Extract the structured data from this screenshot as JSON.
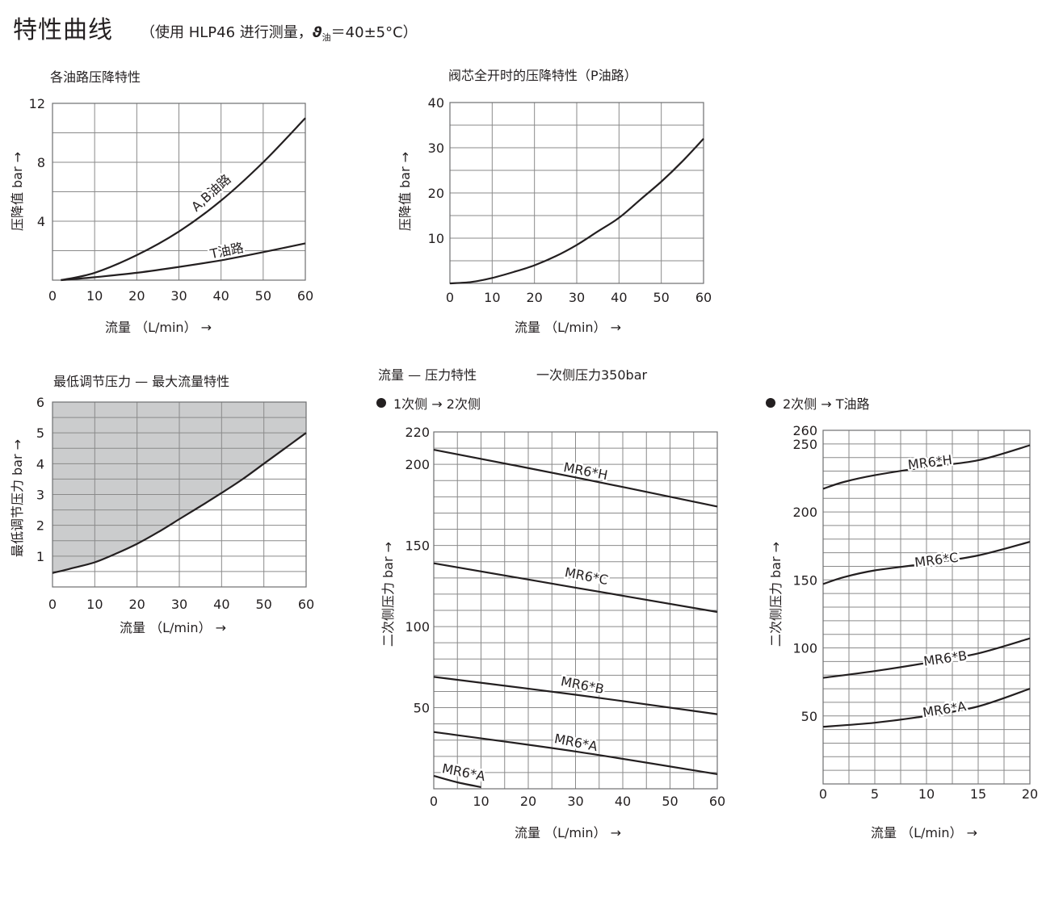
{
  "header": {
    "title": "特性曲线",
    "condition_prefix": "（使用 HLP46 进行测量，",
    "condition_symbol": "ϑ",
    "condition_sub": "油",
    "condition_suffix": "＝40±5°C）"
  },
  "chart_data": [
    {
      "id": "pressure-drop",
      "type": "line",
      "title": "各油路压降特性",
      "xlabel": "流量 （L/min） →",
      "ylabel": "压降值 bar →",
      "xlim": [
        0,
        60
      ],
      "ylim": [
        0,
        12
      ],
      "x_ticks": [
        "0",
        "10",
        "20",
        "30",
        "40",
        "50",
        "60"
      ],
      "y_ticks": [
        "4",
        "8",
        "12"
      ],
      "grid": true,
      "series": [
        {
          "name": "A,B油路",
          "x": [
            2,
            10,
            20,
            30,
            40,
            50,
            60
          ],
          "y": [
            0,
            0.5,
            1.7,
            3.3,
            5.4,
            8.0,
            11.0
          ]
        },
        {
          "name": "T油路",
          "x": [
            2,
            10,
            20,
            30,
            40,
            50,
            60
          ],
          "y": [
            0,
            0.2,
            0.5,
            0.9,
            1.35,
            1.9,
            2.5
          ]
        }
      ]
    },
    {
      "id": "pressure-drop-p",
      "type": "line",
      "title": "阀芯全开时的压降特性（P油路）",
      "xlabel": "流量 （L/min） →",
      "ylabel": "压降值 bar →",
      "xlim": [
        0,
        60
      ],
      "ylim": [
        0,
        40
      ],
      "x_ticks": [
        "0",
        "10",
        "20",
        "30",
        "40",
        "50",
        "60"
      ],
      "y_ticks": [
        "10",
        "20",
        "30",
        "40"
      ],
      "grid": true,
      "series": [
        {
          "name": "",
          "x": [
            0,
            5,
            10,
            15,
            20,
            25,
            30,
            35,
            40,
            45,
            50,
            55,
            60
          ],
          "y": [
            0,
            0.3,
            1.2,
            2.5,
            4,
            6,
            8.5,
            11.5,
            14.5,
            18.5,
            22.5,
            27,
            32
          ]
        }
      ]
    },
    {
      "id": "min-pressure",
      "type": "area",
      "title": "最低调节压力 — 最大流量特性",
      "xlabel": "流量 （L/min） →",
      "ylabel": "最低调节压力 bar →",
      "xlim": [
        0,
        60
      ],
      "ylim": [
        0,
        6
      ],
      "x_ticks": [
        "0",
        "10",
        "20",
        "30",
        "40",
        "50",
        "60"
      ],
      "y_ticks": [
        "1",
        "2",
        "3",
        "4",
        "5",
        "6"
      ],
      "grid": true,
      "shade": "above",
      "series": [
        {
          "name": "",
          "x": [
            0,
            5,
            10,
            15,
            20,
            25,
            30,
            35,
            40,
            45,
            50,
            55,
            60
          ],
          "y": [
            0.45,
            0.62,
            0.8,
            1.08,
            1.4,
            1.78,
            2.2,
            2.62,
            3.05,
            3.5,
            4.0,
            4.5,
            5.0
          ]
        }
      ]
    },
    {
      "id": "flow-pressure-1to2",
      "type": "line",
      "title": "流量 — 压力特性",
      "note": "一次侧压力350bar",
      "subtitle": "1次侧 → 2次侧",
      "xlabel": "流量 （L/min） →",
      "ylabel": "二次侧压力 bar →",
      "xlim": [
        0,
        60
      ],
      "ylim": [
        0,
        220
      ],
      "x_ticks": [
        "0",
        "10",
        "20",
        "30",
        "40",
        "50",
        "60"
      ],
      "y_ticks": [
        "50",
        "100",
        "150",
        "200",
        "220"
      ],
      "grid": true,
      "series": [
        {
          "name": "MR6*H",
          "x": [
            0,
            30,
            60
          ],
          "y": [
            209,
            192,
            174
          ]
        },
        {
          "name": "MR6*C",
          "x": [
            0,
            30,
            60
          ],
          "y": [
            139,
            124,
            109
          ]
        },
        {
          "name": "MR6*B",
          "x": [
            0,
            30,
            60
          ],
          "y": [
            69,
            58,
            46
          ]
        },
        {
          "name": "MR6*A",
          "x": [
            0,
            30,
            60
          ],
          "y": [
            35,
            23,
            9
          ]
        },
        {
          "name": "MR6*A",
          "x": [
            0,
            5,
            10
          ],
          "y": [
            8,
            4,
            1
          ]
        }
      ]
    },
    {
      "id": "flow-pressure-2toT",
      "type": "line",
      "subtitle": "2次侧 → T油路",
      "xlabel": "流量 （L/min） →",
      "ylabel": "二次侧压力 bar →",
      "xlim": [
        0,
        20
      ],
      "ylim": [
        0,
        260
      ],
      "x_ticks": [
        "0",
        "5",
        "10",
        "15",
        "20"
      ],
      "y_ticks": [
        "50",
        "100",
        "150",
        "200",
        "250",
        "260"
      ],
      "grid": true,
      "series": [
        {
          "name": "MR6*H",
          "x": [
            0,
            2,
            5,
            10,
            15,
            20
          ],
          "y": [
            217,
            222,
            227,
            233,
            238,
            249
          ]
        },
        {
          "name": "MR6*C",
          "x": [
            0,
            2,
            5,
            10,
            15,
            20
          ],
          "y": [
            147,
            152,
            157,
            162,
            168,
            178
          ]
        },
        {
          "name": "MR6*B",
          "x": [
            0,
            5,
            10,
            15,
            20
          ],
          "y": [
            78,
            83,
            89,
            96,
            107
          ]
        },
        {
          "name": "MR6*A",
          "x": [
            0,
            5,
            10,
            15,
            20
          ],
          "y": [
            42,
            45,
            50,
            57,
            70
          ]
        }
      ]
    }
  ]
}
